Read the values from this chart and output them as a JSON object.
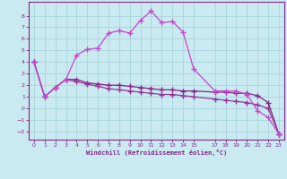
{
  "xlabel": "Windchill (Refroidissement éolien,°C)",
  "background_color": "#c8eaf0",
  "grid_color": "#aad4dc",
  "line_color_bell": "#cc44cc",
  "line_color_flat": "#882288",
  "line_color_diag": "#993399",
  "xlim": [
    -0.5,
    23.5
  ],
  "ylim": [
    -2.7,
    9.2
  ],
  "yticks": [
    -2,
    -1,
    0,
    1,
    2,
    3,
    4,
    5,
    6,
    7,
    8
  ],
  "xtick_positions": [
    0,
    1,
    2,
    3,
    4,
    5,
    6,
    7,
    8,
    9,
    10,
    11,
    12,
    13,
    14,
    15,
    17,
    18,
    19,
    20,
    21,
    22,
    23
  ],
  "xtick_labels": [
    "0",
    "1",
    "2",
    "3",
    "4",
    "5",
    "6",
    "7",
    "8",
    "9",
    "10",
    "11",
    "12",
    "13",
    "14",
    "15",
    "17",
    "18",
    "19",
    "20",
    "21",
    "22",
    "23"
  ],
  "x_all": [
    0,
    1,
    2,
    3,
    4,
    5,
    6,
    7,
    8,
    9,
    10,
    11,
    12,
    13,
    14,
    15,
    17,
    18,
    19,
    20,
    21,
    22,
    23
  ],
  "y_bell": [
    4.0,
    1.0,
    1.8,
    2.5,
    4.6,
    5.1,
    5.2,
    6.5,
    6.7,
    6.5,
    7.6,
    8.4,
    7.4,
    7.5,
    6.6,
    3.4,
    1.5,
    1.5,
    1.5,
    1.2,
    -0.2,
    -0.8,
    -2.2
  ],
  "y_flat": [
    4.0,
    1.0,
    1.8,
    2.5,
    2.5,
    2.2,
    2.1,
    2.0,
    2.0,
    1.9,
    1.8,
    1.7,
    1.6,
    1.6,
    1.5,
    1.5,
    1.4,
    1.4,
    1.3,
    1.3,
    1.1,
    0.5,
    -2.2
  ],
  "y_diag": [
    4.0,
    1.0,
    1.8,
    2.5,
    2.3,
    2.1,
    1.9,
    1.7,
    1.6,
    1.5,
    1.4,
    1.3,
    1.2,
    1.2,
    1.1,
    1.0,
    0.8,
    0.7,
    0.6,
    0.5,
    0.3,
    0.0,
    -2.2
  ],
  "marker": "+",
  "marker_size": 4,
  "linewidth": 0.9
}
